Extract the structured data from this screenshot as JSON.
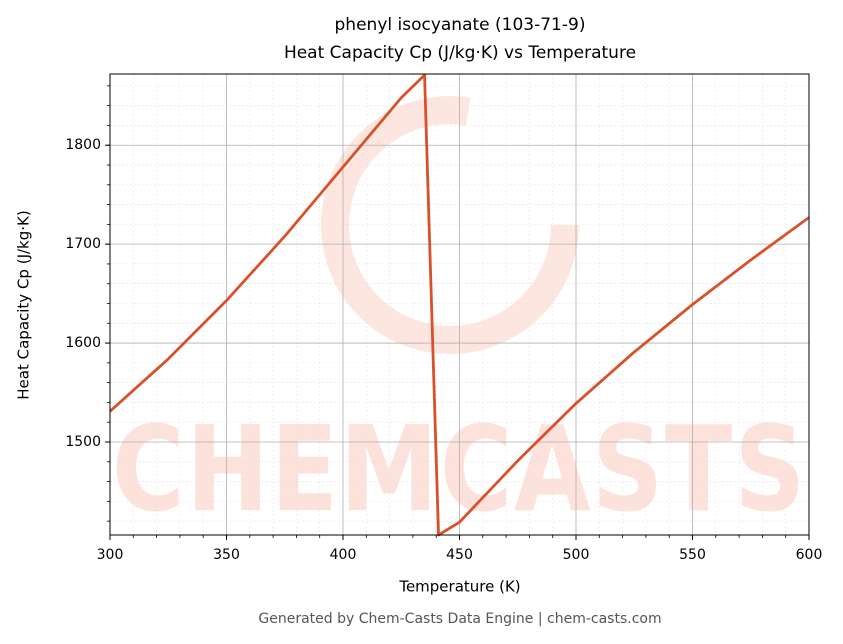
{
  "chart_data": {
    "type": "line",
    "title": "phenyl isocyanate (103-71-9)",
    "subtitle": "Heat Capacity Cp (J/kg·K) vs Temperature",
    "xlabel": "Temperature (K)",
    "ylabel": "Heat Capacity Cp (J/kg·K)",
    "footer": "Generated by Chem-Casts Data Engine | chem-casts.com",
    "watermark": "CHEMCASTS",
    "x": [
      300,
      325,
      350,
      375,
      400,
      425,
      435,
      441,
      450,
      475,
      500,
      525,
      550,
      575,
      600
    ],
    "series": [
      {
        "name": "Cp",
        "color": "#d9512c",
        "values": [
          1531,
          1584,
          1643,
          1708,
          1778,
          1848,
          1871,
          1406,
          1419,
          1481,
          1539,
          1591,
          1639,
          1684,
          1727
        ]
      }
    ],
    "xlim": [
      300,
      600
    ],
    "ylim": [
      1406,
      1872
    ],
    "xticks": [
      300,
      350,
      400,
      450,
      500,
      550,
      600
    ],
    "yticks": [
      1500,
      1600,
      1700,
      1800
    ],
    "grid": true
  }
}
